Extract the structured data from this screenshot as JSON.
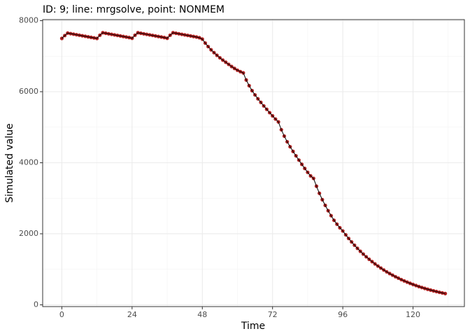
{
  "chart_data": {
    "type": "line",
    "title": "ID: 9; line: mrgsolve, point: NONMEM",
    "x_label": "Time",
    "y_label": "Simulated value",
    "x": [
      0,
      1,
      2,
      3,
      4,
      5,
      6,
      7,
      8,
      9,
      10,
      11,
      12,
      13,
      14,
      15,
      16,
      17,
      18,
      19,
      20,
      21,
      22,
      23,
      24,
      25,
      26,
      27,
      28,
      29,
      30,
      31,
      32,
      33,
      34,
      35,
      36,
      37,
      38,
      39,
      40,
      41,
      42,
      43,
      44,
      45,
      46,
      47,
      48,
      49,
      50,
      51,
      52,
      53,
      54,
      55,
      56,
      57,
      58,
      59,
      60,
      61,
      62,
      63,
      64,
      65,
      66,
      67,
      68,
      69,
      70,
      71,
      72,
      73,
      74,
      75,
      76,
      77,
      78,
      79,
      80,
      81,
      82,
      83,
      84,
      85,
      86,
      87,
      88,
      89,
      90,
      91,
      92,
      93,
      94,
      95,
      96,
      97,
      98,
      99,
      100,
      101,
      102,
      103,
      104,
      105,
      106,
      107,
      108,
      109,
      110,
      111,
      112,
      113,
      114,
      115,
      116,
      117,
      118,
      119,
      120,
      121,
      122,
      123,
      124,
      125,
      126,
      127,
      128,
      129,
      130,
      131
    ],
    "values": [
      7500,
      7580,
      7650,
      7635,
      7620,
      7605,
      7590,
      7575,
      7560,
      7545,
      7530,
      7515,
      7500,
      7590,
      7660,
      7645,
      7630,
      7615,
      7600,
      7585,
      7570,
      7555,
      7540,
      7525,
      7505,
      7590,
      7660,
      7645,
      7630,
      7615,
      7600,
      7585,
      7570,
      7555,
      7540,
      7525,
      7505,
      7590,
      7660,
      7645,
      7630,
      7615,
      7600,
      7585,
      7570,
      7555,
      7540,
      7520,
      7480,
      7370,
      7270,
      7180,
      7100,
      7025,
      6955,
      6890,
      6830,
      6770,
      6710,
      6655,
      6605,
      6565,
      6530,
      6330,
      6170,
      6030,
      5910,
      5800,
      5700,
      5600,
      5505,
      5410,
      5320,
      5230,
      5150,
      4930,
      4750,
      4590,
      4450,
      4320,
      4195,
      4075,
      3955,
      3840,
      3730,
      3630,
      3560,
      3340,
      3140,
      2960,
      2800,
      2650,
      2510,
      2380,
      2270,
      2170,
      2080,
      1971,
      1868,
      1771,
      1678,
      1590,
      1507,
      1428,
      1353,
      1283,
      1216,
      1152,
      1092,
      1035,
      981,
      929,
      881,
      835,
      791,
      750,
      710,
      673,
      638,
      605,
      573,
      543,
      514,
      488,
      462,
      438,
      415,
      393,
      373,
      353,
      335,
      317
    ],
    "line_color": "#000000",
    "point_color": "#b22222",
    "xlim": [
      -6.55,
      137.55
    ],
    "xticks": [
      0,
      24,
      48,
      72,
      96,
      120
    ],
    "xminor": [
      12,
      36,
      60,
      84,
      108,
      132
    ],
    "ylim": [
      -50,
      8030
    ],
    "yticks": [
      0,
      2000,
      4000,
      6000,
      8000
    ],
    "yminor": [
      1000,
      3000,
      5000,
      7000
    ],
    "grid": true
  }
}
